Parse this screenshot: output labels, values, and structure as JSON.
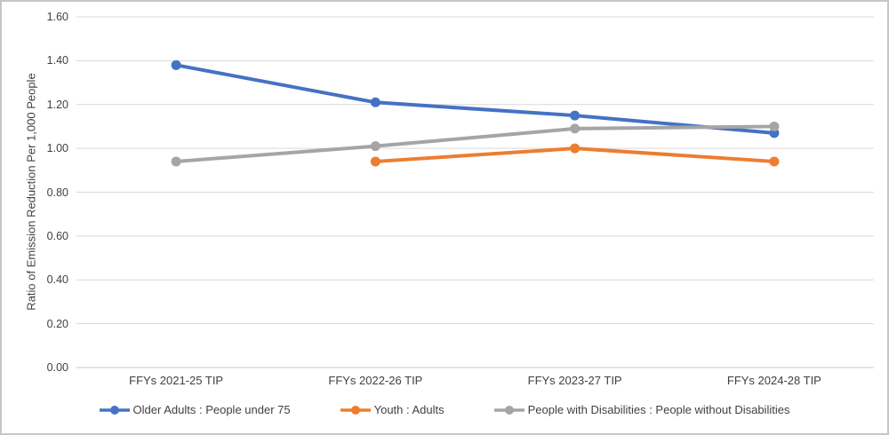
{
  "chart_data": {
    "type": "line",
    "title": "",
    "xlabel": "",
    "ylabel": "Ratio of Emission Reduction Per 1,000 People",
    "ylim": [
      0.0,
      1.6
    ],
    "ytick_step": 0.2,
    "ytick_labels": [
      "1.60",
      "1.40",
      "1.20",
      "1.00",
      "0.80",
      "0.60",
      "0.40",
      "0.20",
      "0.00"
    ],
    "grid": "horizontal",
    "legend_position": "bottom",
    "categories": [
      "FFYs 2021-25 TIP",
      "FFYs 2022-26 TIP",
      "FFYs 2023-27 TIP",
      "FFYs 2024-28 TIP"
    ],
    "series": [
      {
        "name": "Older Adults : People under 75",
        "color": "#4472C4",
        "values": [
          1.38,
          1.21,
          1.15,
          1.07
        ]
      },
      {
        "name": "Youth : Adults",
        "color": "#ED7D31",
        "values": [
          null,
          0.94,
          1.0,
          0.94
        ]
      },
      {
        "name": "People with Disabilities : People without Disabilities",
        "color": "#A5A5A5",
        "values": [
          0.94,
          1.01,
          1.09,
          1.1
        ]
      }
    ]
  },
  "colors": {
    "gridline": "#D9D9D9",
    "axis_line": "#C9C9C9",
    "text": "#404040",
    "frame_border": "#C6C6C6",
    "background": "#FFFFFF"
  }
}
